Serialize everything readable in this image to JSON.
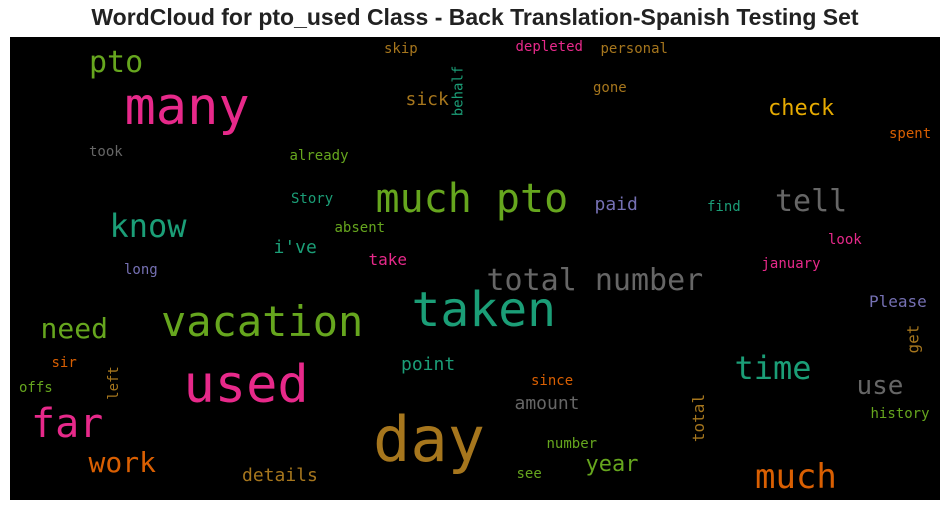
{
  "title": "WordCloud for pto_used Class - Back Translation-Spanish Testing Set",
  "chart_data": {
    "type": "wordcloud",
    "title": "WordCloud for pto_used Class - Back Translation-Spanish Testing Set",
    "background": "#000000",
    "words": [
      {
        "text": "many",
        "size": 52,
        "color": "#e7298a",
        "rotate": 0
      },
      {
        "text": "day",
        "size": 62,
        "color": "#a6761d",
        "rotate": 0
      },
      {
        "text": "used",
        "size": 52,
        "color": "#e7298a",
        "rotate": 0
      },
      {
        "text": "taken",
        "size": 48,
        "color": "#1b9e77",
        "rotate": 0
      },
      {
        "text": "vacation",
        "size": 42,
        "color": "#66a61e",
        "rotate": 0
      },
      {
        "text": "much pto",
        "size": 40,
        "color": "#66a61e",
        "rotate": 0
      },
      {
        "text": "far",
        "size": 40,
        "color": "#e7298a",
        "rotate": 0
      },
      {
        "text": "much",
        "size": 34,
        "color": "#d95f02",
        "rotate": 0
      },
      {
        "text": "know",
        "size": 32,
        "color": "#1b9e77",
        "rotate": 0
      },
      {
        "text": "total number",
        "size": 30,
        "color": "#666666",
        "rotate": 0
      },
      {
        "text": "pto",
        "size": 30,
        "color": "#66a61e",
        "rotate": 0
      },
      {
        "text": "time",
        "size": 32,
        "color": "#1b9e77",
        "rotate": 0
      },
      {
        "text": "tell",
        "size": 30,
        "color": "#666666",
        "rotate": 0
      },
      {
        "text": "need",
        "size": 28,
        "color": "#66a61e",
        "rotate": 0
      },
      {
        "text": "work",
        "size": 28,
        "color": "#d95f02",
        "rotate": 0
      },
      {
        "text": "use",
        "size": 26,
        "color": "#666666",
        "rotate": 0
      },
      {
        "text": "check",
        "size": 22,
        "color": "#e6ab02",
        "rotate": 0
      },
      {
        "text": "year",
        "size": 22,
        "color": "#66a61e",
        "rotate": 0
      },
      {
        "text": "sick",
        "size": 18,
        "color": "#a6761d",
        "rotate": 0
      },
      {
        "text": "details",
        "size": 18,
        "color": "#a6761d",
        "rotate": 0
      },
      {
        "text": "point",
        "size": 18,
        "color": "#1b9e77",
        "rotate": 0
      },
      {
        "text": "amount",
        "size": 18,
        "color": "#666666",
        "rotate": 0
      },
      {
        "text": "i've",
        "size": 18,
        "color": "#1b9e77",
        "rotate": 0
      },
      {
        "text": "paid",
        "size": 18,
        "color": "#7570b3",
        "rotate": 0
      },
      {
        "text": "take",
        "size": 16,
        "color": "#e7298a",
        "rotate": 0
      },
      {
        "text": "Please",
        "size": 16,
        "color": "#7570b3",
        "rotate": 0
      },
      {
        "text": "total",
        "size": 16,
        "color": "#a6761d",
        "rotate": -90
      },
      {
        "text": "get",
        "size": 16,
        "color": "#a6761d",
        "rotate": -90
      },
      {
        "text": "already",
        "size": 14,
        "color": "#66a61e",
        "rotate": 0
      },
      {
        "text": "Story",
        "size": 14,
        "color": "#1b9e77",
        "rotate": 0
      },
      {
        "text": "absent",
        "size": 14,
        "color": "#66a61e",
        "rotate": 0
      },
      {
        "text": "depleted",
        "size": 14,
        "color": "#e7298a",
        "rotate": 0
      },
      {
        "text": "personal",
        "size": 14,
        "color": "#a6761d",
        "rotate": 0
      },
      {
        "text": "skip",
        "size": 14,
        "color": "#a6761d",
        "rotate": 0
      },
      {
        "text": "gone",
        "size": 14,
        "color": "#a6761d",
        "rotate": 0
      },
      {
        "text": "behalf",
        "size": 14,
        "color": "#1b9e77",
        "rotate": -90
      },
      {
        "text": "took",
        "size": 14,
        "color": "#666666",
        "rotate": 0
      },
      {
        "text": "spent",
        "size": 14,
        "color": "#d95f02",
        "rotate": 0
      },
      {
        "text": "find",
        "size": 14,
        "color": "#1b9e77",
        "rotate": 0
      },
      {
        "text": "look",
        "size": 14,
        "color": "#e7298a",
        "rotate": 0
      },
      {
        "text": "january",
        "size": 14,
        "color": "#e7298a",
        "rotate": 0
      },
      {
        "text": "long",
        "size": 14,
        "color": "#7570b3",
        "rotate": 0
      },
      {
        "text": "sir",
        "size": 14,
        "color": "#d95f02",
        "rotate": 0
      },
      {
        "text": "offs",
        "size": 14,
        "color": "#66a61e",
        "rotate": 0
      },
      {
        "text": "left",
        "size": 14,
        "color": "#a6761d",
        "rotate": -90
      },
      {
        "text": "since",
        "size": 14,
        "color": "#d95f02",
        "rotate": 0
      },
      {
        "text": "history",
        "size": 14,
        "color": "#66a61e",
        "rotate": 0
      },
      {
        "text": "number",
        "size": 14,
        "color": "#66a61e",
        "rotate": 0
      },
      {
        "text": "see",
        "size": 14,
        "color": "#66a61e",
        "rotate": 0
      }
    ]
  }
}
